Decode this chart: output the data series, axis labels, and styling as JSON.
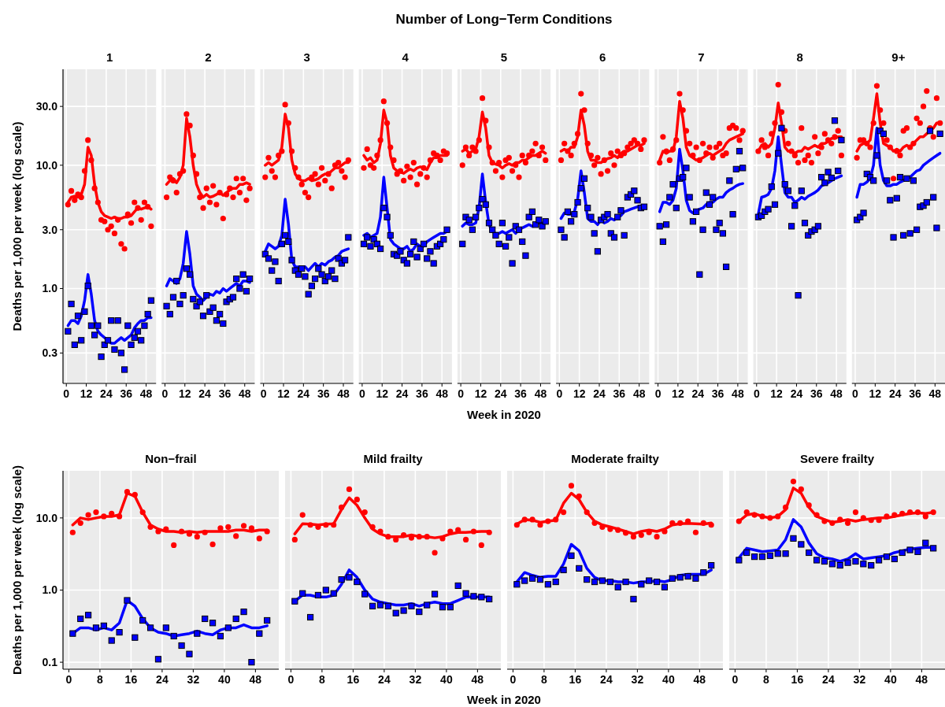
{
  "chart_data": [
    {
      "type": "scatter",
      "subtitle": "1",
      "ylabel": "Deaths per 1,000 per week (log scale)",
      "log": "y",
      "grid": true,
      "xlim": [
        -2,
        54
      ],
      "xticks": [
        0,
        12,
        24,
        36,
        48
      ],
      "ylim": [
        0.17,
        60
      ],
      "yticks": [
        {
          "value": 0.3,
          "label": "0.3"
        },
        {
          "value": 1,
          "label": "1.0"
        },
        {
          "value": 3,
          "label": "3.0"
        },
        {
          "value": 10,
          "label": "10.0"
        },
        {
          "value": 30,
          "label": "30.0"
        }
      ],
      "x": [
        1,
        3,
        5,
        7,
        9,
        11,
        13,
        15,
        17,
        19,
        21,
        23,
        25,
        27,
        29,
        31,
        33,
        35,
        37,
        39,
        41,
        43,
        45,
        47,
        49,
        51
      ],
      "series": [
        {
          "type": "scatter",
          "marker": "circle",
          "color": "#ff0000",
          "values": [
            4.8,
            6.2,
            5.2,
            5.8,
            5.5,
            9,
            16,
            11,
            6.5,
            5,
            3.6,
            3.5,
            3.0,
            3.2,
            2.8,
            3.6,
            2.3,
            2.1,
            4.0,
            3.4,
            5.0,
            4.5,
            3.6,
            5,
            4.6,
            3.2
          ]
        },
        {
          "type": "scatter",
          "marker": "square",
          "color": "#0000ff",
          "values": [
            0.45,
            0.75,
            0.35,
            0.6,
            0.38,
            0.65,
            1.05,
            0.5,
            0.42,
            0.5,
            0.28,
            0.35,
            0.38,
            0.55,
            0.32,
            0.55,
            0.3,
            0.22,
            0.5,
            0.35,
            0.4,
            0.45,
            0.38,
            0.5,
            0.62,
            0.8
          ]
        },
        {
          "type": "line",
          "color": "#ff0000",
          "values": [
            5.0,
            5.5,
            5.6,
            5.5,
            5.8,
            7,
            14,
            12,
            7,
            5,
            4.2,
            3.9,
            3.8,
            3.7,
            3.8,
            3.7,
            3.7,
            3.8,
            3.8,
            3.9,
            4.2,
            4.5,
            4.4,
            4.5,
            4.6,
            4.4
          ]
        },
        {
          "type": "line",
          "color": "#0000ff",
          "values": [
            0.5,
            0.55,
            0.55,
            0.52,
            0.6,
            0.8,
            1.3,
            0.9,
            0.55,
            0.45,
            0.42,
            0.4,
            0.38,
            0.36,
            0.36,
            0.38,
            0.4,
            0.38,
            0.4,
            0.42,
            0.48,
            0.52,
            0.55,
            0.55,
            0.58,
            0.58
          ]
        }
      ]
    },
    {
      "type": "scatter",
      "subtitle": "2",
      "tick_labels": "x",
      "log": "y",
      "grid": true,
      "xlim": [
        -2,
        54
      ],
      "xticks": [
        0,
        12,
        24,
        36,
        48
      ],
      "ylim": [
        0.17,
        60
      ],
      "yticks": [
        0.3,
        1,
        3,
        10,
        30
      ],
      "x": [
        1,
        3,
        5,
        7,
        9,
        11,
        13,
        15,
        17,
        19,
        21,
        23,
        25,
        27,
        29,
        31,
        33,
        35,
        37,
        39,
        41,
        43,
        45,
        47,
        49,
        51
      ],
      "series": [
        {
          "type": "scatter",
          "marker": "circle",
          "color": "#ff0000",
          "values": [
            5.5,
            8,
            7.5,
            6,
            8.5,
            9,
            26,
            21,
            12,
            8.5,
            5.5,
            4.5,
            6.5,
            5,
            6.8,
            4.8,
            6,
            3.7,
            5.8,
            6.5,
            5.5,
            7.8,
            6,
            7.8,
            5.2,
            6.5
          ]
        },
        {
          "type": "scatter",
          "marker": "square",
          "color": "#0000ff",
          "values": [
            0.72,
            0.62,
            0.85,
            1.15,
            0.75,
            0.88,
            1.45,
            1.3,
            0.82,
            0.72,
            0.78,
            0.6,
            0.88,
            0.65,
            0.7,
            0.55,
            0.62,
            0.52,
            0.78,
            0.82,
            0.85,
            1.2,
            1.0,
            1.3,
            0.95,
            1.2
          ]
        },
        {
          "type": "line",
          "color": "#ff0000",
          "values": [
            7,
            7.5,
            7.8,
            7.2,
            8,
            10,
            24,
            17,
            10,
            7,
            6,
            5.5,
            5.8,
            5.5,
            5.6,
            5.8,
            6,
            5.7,
            6,
            6.3,
            6.5,
            6.5,
            7,
            7,
            7.2,
            7
          ]
        },
        {
          "type": "line",
          "color": "#0000ff",
          "values": [
            1.05,
            1.2,
            1.15,
            1.1,
            1.2,
            1.6,
            2.9,
            1.9,
            1.05,
            0.9,
            0.85,
            0.8,
            0.85,
            0.9,
            0.88,
            0.95,
            0.92,
            1.0,
            0.95,
            1.0,
            1.05,
            1.1,
            1.05,
            1.15,
            1.15,
            1.12
          ]
        }
      ]
    },
    {
      "type": "scatter",
      "subtitle": "3",
      "tick_labels": "x",
      "log": "y",
      "grid": true,
      "xlim": [
        -2,
        54
      ],
      "xticks": [
        0,
        12,
        24,
        36,
        48
      ],
      "ylim": [
        0.17,
        60
      ],
      "yticks": [
        0.3,
        1,
        3,
        10,
        30
      ],
      "x": [
        1,
        3,
        5,
        7,
        9,
        11,
        13,
        15,
        17,
        19,
        21,
        23,
        25,
        27,
        29,
        31,
        33,
        35,
        37,
        39,
        41,
        43,
        45,
        47,
        49,
        51
      ],
      "series": [
        {
          "type": "scatter",
          "marker": "circle",
          "color": "#ff0000",
          "values": [
            8,
            11.5,
            9,
            8,
            12,
            13,
            31,
            22,
            13,
            9.5,
            8,
            7,
            6,
            5.5,
            8,
            8.5,
            7,
            9.5,
            7.5,
            8.5,
            6.5,
            10,
            10.5,
            9,
            8,
            11
          ]
        },
        {
          "type": "scatter",
          "marker": "square",
          "color": "#0000ff",
          "values": [
            1.9,
            1.75,
            1.4,
            1.65,
            1.15,
            2.3,
            2.7,
            2.4,
            1.7,
            1.4,
            1.3,
            1.45,
            1.25,
            0.9,
            1.05,
            1.2,
            1.45,
            1.3,
            1.15,
            1.25,
            1.4,
            1.2,
            1.75,
            1.6,
            1.7,
            2.6
          ]
        },
        {
          "type": "line",
          "color": "#ff0000",
          "values": [
            10,
            10.5,
            10,
            10.5,
            11,
            14,
            26,
            20,
            11,
            8.5,
            7.8,
            7.5,
            7.5,
            7.8,
            7.5,
            7.6,
            7.8,
            8.2,
            8.5,
            8.5,
            9,
            9.5,
            9.5,
            10,
            10.5,
            10.5
          ]
        },
        {
          "type": "line",
          "color": "#0000ff",
          "values": [
            2.0,
            2.3,
            2.2,
            2.1,
            2.2,
            2.7,
            5.3,
            3.3,
            1.7,
            1.5,
            1.5,
            1.45,
            1.5,
            1.4,
            1.5,
            1.6,
            1.5,
            1.6,
            1.55,
            1.65,
            1.7,
            1.8,
            1.85,
            2.0,
            2.05,
            2.1
          ]
        }
      ]
    },
    {
      "type": "scatter",
      "subtitle": "4",
      "tick_labels": "x",
      "log": "y",
      "grid": true,
      "xlim": [
        -2,
        54
      ],
      "xticks": [
        0,
        12,
        24,
        36,
        48
      ],
      "ylim": [
        0.17,
        60
      ],
      "yticks": [
        0.3,
        1,
        3,
        10,
        30
      ],
      "x": [
        1,
        3,
        5,
        7,
        9,
        11,
        13,
        15,
        17,
        19,
        21,
        23,
        25,
        27,
        29,
        31,
        33,
        35,
        37,
        39,
        41,
        43,
        45,
        47,
        49,
        51
      ],
      "series": [
        {
          "type": "scatter",
          "marker": "circle",
          "color": "#ff0000",
          "values": [
            9.5,
            13.5,
            10,
            9.5,
            12,
            16,
            33,
            22,
            14,
            11,
            8.5,
            9,
            7.5,
            9.8,
            8,
            10.5,
            7,
            8.5,
            9.5,
            8,
            11,
            12.5,
            12,
            11,
            13,
            12.5
          ]
        },
        {
          "type": "scatter",
          "marker": "square",
          "color": "#0000ff",
          "values": [
            2.3,
            2.6,
            2.2,
            2.5,
            2.3,
            2.1,
            4.5,
            3.8,
            2.7,
            1.9,
            1.85,
            2.0,
            1.7,
            1.6,
            1.9,
            2.4,
            1.8,
            2.1,
            2.3,
            1.75,
            2.0,
            1.6,
            2.2,
            2.3,
            2.5,
            3.0
          ]
        },
        {
          "type": "line",
          "color": "#ff0000",
          "values": [
            12,
            11,
            11.5,
            10.5,
            11,
            15,
            28,
            22,
            12,
            9.5,
            9,
            8.8,
            8.6,
            9,
            9.3,
            9,
            9.5,
            9.7,
            9.5,
            9.2,
            10.5,
            11.5,
            11.5,
            12,
            12,
            12
          ]
        },
        {
          "type": "line",
          "color": "#0000ff",
          "values": [
            2.7,
            2.8,
            2.6,
            2.7,
            2.8,
            3.8,
            8,
            4.5,
            2.5,
            2.3,
            2.2,
            2.1,
            2.1,
            2.2,
            2.0,
            2.1,
            2.3,
            2.2,
            2.2,
            2.4,
            2.5,
            2.6,
            2.7,
            2.8,
            2.8,
            2.9
          ]
        }
      ]
    },
    {
      "type": "scatter",
      "title": "Number of Long−Term Conditions",
      "subtitle": "5",
      "xlabel": "Week in 2020",
      "tick_labels": "x",
      "log": "y",
      "grid": true,
      "xlim": [
        -2,
        54
      ],
      "xticks": [
        0,
        12,
        24,
        36,
        48
      ],
      "ylim": [
        0.17,
        60
      ],
      "yticks": [
        0.3,
        1,
        3,
        10,
        30
      ],
      "x": [
        1,
        3,
        5,
        7,
        9,
        11,
        13,
        15,
        17,
        19,
        21,
        23,
        25,
        27,
        29,
        31,
        33,
        35,
        37,
        39,
        41,
        43,
        45,
        47,
        49,
        51
      ],
      "series": [
        {
          "type": "scatter",
          "marker": "circle",
          "color": "#ff0000",
          "values": [
            10,
            14,
            12,
            14,
            13,
            16,
            35,
            23,
            14,
            10.5,
            9,
            10.5,
            8,
            11,
            11.5,
            9,
            10,
            8,
            12,
            10.5,
            12,
            13,
            15,
            12,
            14,
            11
          ]
        },
        {
          "type": "scatter",
          "marker": "square",
          "color": "#0000ff",
          "values": [
            2.3,
            3.8,
            3.6,
            3.0,
            3.8,
            4.5,
            5.3,
            4.8,
            3.4,
            3.0,
            2.7,
            2.3,
            3.4,
            2.2,
            2.6,
            1.6,
            3.2,
            3.0,
            2.4,
            1.85,
            3.8,
            4.2,
            3.3,
            3.6,
            3.2,
            3.5
          ]
        },
        {
          "type": "line",
          "color": "#ff0000",
          "values": [
            13,
            13.5,
            12.5,
            13,
            13.5,
            17,
            27,
            20,
            12,
            10.5,
            10.2,
            10,
            9.5,
            10,
            10.3,
            10,
            10.5,
            10.5,
            11,
            11,
            11.5,
            12,
            12,
            12.5,
            13,
            12.5
          ]
        },
        {
          "type": "line",
          "color": "#0000ff",
          "values": [
            3.2,
            3.4,
            3.3,
            3.3,
            3.4,
            4.5,
            8.5,
            5,
            3.3,
            2.9,
            2.8,
            2.8,
            2.9,
            2.8,
            2.9,
            3.0,
            2.8,
            3.0,
            3.1,
            3.2,
            3.3,
            3.2,
            3.3,
            3.4,
            3.4,
            3.4
          ]
        }
      ]
    },
    {
      "type": "scatter",
      "subtitle": "6",
      "tick_labels": "x",
      "log": "y",
      "grid": true,
      "xlim": [
        -2,
        54
      ],
      "xticks": [
        0,
        12,
        24,
        36,
        48
      ],
      "ylim": [
        0.17,
        60
      ],
      "yticks": [
        0.3,
        1,
        3,
        10,
        30
      ],
      "x": [
        1,
        3,
        5,
        7,
        9,
        11,
        13,
        15,
        17,
        19,
        21,
        23,
        25,
        27,
        29,
        31,
        33,
        35,
        37,
        39,
        41,
        43,
        45,
        47,
        49,
        51
      ],
      "series": [
        {
          "type": "scatter",
          "marker": "circle",
          "color": "#ff0000",
          "values": [
            11,
            15,
            13,
            12,
            15,
            18,
            38,
            28,
            15,
            12,
            10,
            11.5,
            8.5,
            11,
            9,
            12.5,
            10,
            13,
            12,
            12.5,
            14,
            15,
            16,
            15,
            13.5,
            16
          ]
        },
        {
          "type": "scatter",
          "marker": "square",
          "color": "#0000ff",
          "values": [
            3.0,
            2.6,
            4.2,
            3.5,
            4.0,
            5.0,
            6.5,
            7.8,
            4.5,
            3.8,
            2.8,
            2.0,
            3.6,
            3.8,
            4.0,
            2.8,
            2.6,
            3.8,
            4.3,
            2.7,
            5.5,
            5.8,
            6.2,
            5.2,
            4.5,
            4.6
          ]
        },
        {
          "type": "line",
          "color": "#ff0000",
          "values": [
            13,
            13.5,
            13,
            14,
            14,
            17,
            28,
            21,
            13,
            11,
            11,
            10.5,
            10.5,
            11,
            11.3,
            11.5,
            12,
            11.5,
            12.5,
            13,
            13,
            13.5,
            14,
            14.5,
            14.5,
            15
          ]
        },
        {
          "type": "line",
          "color": "#0000ff",
          "values": [
            3.7,
            4.1,
            4.0,
            4.0,
            4.2,
            5.3,
            9.0,
            6,
            3.7,
            3.5,
            3.5,
            3.3,
            3.6,
            3.4,
            3.5,
            3.7,
            3.6,
            3.8,
            3.9,
            4.2,
            4.3,
            4.4,
            4.5,
            4.6,
            4.7,
            4.7
          ]
        }
      ]
    },
    {
      "type": "scatter",
      "subtitle": "7",
      "tick_labels": "x",
      "log": "y",
      "grid": true,
      "xlim": [
        -2,
        54
      ],
      "xticks": [
        0,
        12,
        24,
        36,
        48
      ],
      "ylim": [
        0.17,
        60
      ],
      "yticks": [
        0.3,
        1,
        3,
        10,
        30
      ],
      "x": [
        1,
        3,
        5,
        7,
        9,
        11,
        13,
        15,
        17,
        19,
        21,
        23,
        25,
        27,
        29,
        31,
        33,
        35,
        37,
        39,
        41,
        43,
        45,
        47,
        49,
        51
      ],
      "series": [
        {
          "type": "scatter",
          "marker": "circle",
          "color": "#ff0000",
          "values": [
            10.5,
            17,
            13,
            11,
            13.5,
            16,
            38,
            28,
            19,
            15,
            12,
            14,
            11,
            15,
            12.5,
            14,
            11.5,
            14,
            15,
            12,
            12.5,
            20,
            21,
            20,
            16,
            19
          ]
        },
        {
          "type": "scatter",
          "marker": "square",
          "color": "#0000ff",
          "values": [
            3.2,
            2.4,
            3.3,
            5.5,
            7,
            4.5,
            7.8,
            8.0,
            9.5,
            5.5,
            3.5,
            4.2,
            1.3,
            3.0,
            6.0,
            4.8,
            5.5,
            3.0,
            3.4,
            2.8,
            1.5,
            7.5,
            4.0,
            9.3,
            13,
            9.5
          ]
        },
        {
          "type": "line",
          "color": "#ff0000",
          "values": [
            11,
            13,
            12.5,
            13,
            13,
            17,
            33,
            24,
            14,
            12,
            11.5,
            11,
            11.2,
            11.5,
            12,
            12.5,
            12,
            12.5,
            13,
            13.5,
            15,
            16,
            16.5,
            17,
            17.5,
            18
          ]
        },
        {
          "type": "line",
          "color": "#0000ff",
          "values": [
            4.2,
            5.0,
            5.0,
            4.8,
            5.2,
            6.5,
            13.5,
            9,
            5.2,
            4.3,
            4.1,
            4.3,
            4.4,
            4.5,
            4.8,
            5.0,
            5.0,
            5.3,
            5.5,
            5.5,
            6,
            6.3,
            6.5,
            6.8,
            7,
            7.1
          ]
        }
      ]
    },
    {
      "type": "scatter",
      "subtitle": "8",
      "tick_labels": "x",
      "log": "y",
      "grid": true,
      "xlim": [
        -2,
        54
      ],
      "xticks": [
        0,
        12,
        24,
        36,
        48
      ],
      "ylim": [
        0.17,
        60
      ],
      "yticks": [
        0.3,
        1,
        3,
        10,
        30
      ],
      "x": [
        1,
        3,
        5,
        7,
        9,
        11,
        13,
        15,
        17,
        19,
        21,
        23,
        25,
        27,
        29,
        31,
        33,
        35,
        37,
        39,
        41,
        43,
        45,
        47,
        49,
        51
      ],
      "series": [
        {
          "type": "scatter",
          "marker": "circle",
          "color": "#ff0000",
          "values": [
            13,
            16,
            14,
            12,
            18,
            22,
            45,
            27,
            19,
            15,
            13,
            12,
            10.5,
            20,
            11,
            12,
            10.5,
            17,
            12.5,
            14,
            18,
            16,
            15,
            17,
            19,
            12
          ]
        },
        {
          "type": "scatter",
          "marker": "square",
          "color": "#0000ff",
          "values": [
            3.8,
            3.9,
            4.2,
            4.4,
            6.7,
            4.8,
            12.5,
            20,
            7,
            6.2,
            3.2,
            4.7,
            0.88,
            6.2,
            3.4,
            2.7,
            2.9,
            3.0,
            3.2,
            8.0,
            7.2,
            8.8,
            7.9,
            23,
            9,
            16
          ]
        },
        {
          "type": "line",
          "color": "#ff0000",
          "values": [
            13,
            14.5,
            15,
            14,
            15,
            20,
            32,
            22,
            14,
            13,
            13,
            12.5,
            13,
            13,
            14,
            13.5,
            14,
            14.5,
            14,
            15,
            15,
            15.5,
            16.5,
            16.5,
            17,
            17
          ]
        },
        {
          "type": "line",
          "color": "#0000ff",
          "values": [
            4.0,
            5.5,
            5.6,
            5.8,
            6.5,
            9,
            17,
            10,
            6,
            5.5,
            5.5,
            5.0,
            5.2,
            5.5,
            5.3,
            5.6,
            5.8,
            6.0,
            6.3,
            6.8,
            7,
            7.2,
            7.5,
            7.8,
            8.0,
            8.2
          ]
        }
      ]
    },
    {
      "type": "scatter",
      "subtitle": "9+",
      "tick_labels": "x",
      "log": "y",
      "grid": true,
      "xlim": [
        -2,
        54
      ],
      "xticks": [
        0,
        12,
        24,
        36,
        48
      ],
      "ylim": [
        0.17,
        60
      ],
      "yticks": [
        0.3,
        1,
        3,
        10,
        30
      ],
      "x": [
        1,
        3,
        5,
        7,
        9,
        11,
        13,
        15,
        17,
        19,
        21,
        23,
        25,
        27,
        29,
        31,
        33,
        35,
        37,
        39,
        41,
        43,
        45,
        47,
        49,
        51
      ],
      "series": [
        {
          "type": "scatter",
          "marker": "circle",
          "color": "#ff0000",
          "values": [
            11.5,
            16,
            16,
            15,
            14,
            22,
            44,
            28,
            22,
            16,
            14,
            7.8,
            13,
            12,
            19,
            20,
            14,
            15,
            24,
            22,
            30,
            40,
            20,
            17,
            35,
            22
          ]
        },
        {
          "type": "scatter",
          "marker": "square",
          "color": "#0000ff",
          "values": [
            3.6,
            3.8,
            4.1,
            8.5,
            8.0,
            7.5,
            12,
            19,
            18,
            7.5,
            5.2,
            2.6,
            5.4,
            8,
            2.7,
            7.8,
            2.8,
            7.5,
            3.0,
            4.6,
            4.7,
            5.0,
            19,
            5.5,
            3.1,
            18
          ]
        },
        {
          "type": "line",
          "color": "#ff0000",
          "values": [
            13,
            14.5,
            15,
            15,
            16,
            24,
            38,
            22,
            15,
            14.5,
            14,
            13,
            13.5,
            13,
            14,
            14.5,
            14,
            15,
            16,
            17,
            17,
            18,
            19,
            20,
            22,
            22
          ]
        },
        {
          "type": "line",
          "color": "#0000ff",
          "values": [
            5.5,
            7,
            7,
            7.3,
            7.8,
            10,
            20,
            10,
            7.5,
            6.8,
            6.8,
            7,
            7,
            7.3,
            7.5,
            7.8,
            8,
            8.5,
            9,
            9.2,
            10,
            10.5,
            11,
            11.5,
            12,
            12.5
          ]
        }
      ]
    },
    {
      "type": "scatter",
      "subtitle": "Non−frail",
      "ylabel": "Deaths per 1,000 per week (log scale)",
      "log": "y",
      "grid": true,
      "xlim": [
        -1.5,
        54
      ],
      "xticks": [
        0,
        8,
        16,
        24,
        32,
        40,
        48
      ],
      "ylim": [
        0.08,
        45
      ],
      "yticks": [
        {
          "value": 0.1,
          "label": "0.1"
        },
        {
          "value": 1,
          "label": "1.0"
        },
        {
          "value": 10,
          "label": "10.0"
        }
      ],
      "x": [
        1,
        3,
        5,
        7,
        9,
        11,
        13,
        15,
        17,
        19,
        21,
        23,
        25,
        27,
        29,
        31,
        33,
        35,
        37,
        39,
        41,
        43,
        45,
        47,
        49,
        51
      ],
      "series": [
        {
          "type": "scatter",
          "marker": "circle",
          "color": "#ff0000",
          "values": [
            6.3,
            8.5,
            11,
            12,
            10.5,
            11.5,
            10.5,
            23,
            21,
            12,
            7.5,
            6.5,
            7,
            4.2,
            6.5,
            6,
            5.5,
            6.3,
            4.3,
            7.2,
            7.5,
            5.6,
            7.8,
            7.2,
            5.2,
            6.5
          ]
        },
        {
          "type": "scatter",
          "marker": "square",
          "color": "#0000ff",
          "values": [
            0.25,
            0.4,
            0.45,
            0.3,
            0.32,
            0.2,
            0.26,
            0.72,
            0.22,
            0.38,
            0.3,
            0.11,
            0.3,
            0.23,
            0.17,
            0.13,
            0.25,
            0.4,
            0.35,
            0.23,
            0.3,
            0.4,
            0.5,
            0.1,
            0.25,
            0.38
          ]
        },
        {
          "type": "line",
          "color": "#ff0000",
          "values": [
            8,
            10,
            9.5,
            10,
            10.5,
            10.5,
            11,
            22,
            20,
            12,
            8,
            7,
            6.5,
            6.5,
            6.3,
            6.5,
            6.3,
            6.5,
            6.5,
            6.5,
            6.5,
            6.8,
            6.8,
            6.5,
            6.8,
            6.8
          ]
        },
        {
          "type": "line",
          "color": "#0000ff",
          "values": [
            0.25,
            0.3,
            0.3,
            0.28,
            0.3,
            0.28,
            0.35,
            0.72,
            0.6,
            0.4,
            0.3,
            0.26,
            0.25,
            0.23,
            0.24,
            0.25,
            0.27,
            0.25,
            0.24,
            0.28,
            0.3,
            0.3,
            0.33,
            0.3,
            0.3,
            0.32
          ]
        }
      ]
    },
    {
      "type": "scatter",
      "subtitle": "Mild frailty",
      "xlabel": "Week in 2020",
      "tick_labels": "x",
      "log": "y",
      "grid": true,
      "xlim": [
        -1.5,
        54
      ],
      "xticks": [
        0,
        8,
        16,
        24,
        32,
        40,
        48
      ],
      "ylim": [
        0.08,
        45
      ],
      "yticks": [
        0.1,
        1,
        10
      ],
      "x": [
        1,
        3,
        5,
        7,
        9,
        11,
        13,
        15,
        17,
        19,
        21,
        23,
        25,
        27,
        29,
        31,
        33,
        35,
        37,
        39,
        41,
        43,
        45,
        47,
        49,
        51
      ],
      "series": [
        {
          "type": "scatter",
          "marker": "circle",
          "color": "#ff0000",
          "values": [
            5,
            11,
            8,
            7.5,
            8,
            8,
            14,
            25,
            18,
            12,
            7.5,
            6.5,
            5.5,
            5,
            5.8,
            5.3,
            5.5,
            5.5,
            3.3,
            5.2,
            6.5,
            6.8,
            5,
            6.5,
            4.2,
            6.3
          ]
        },
        {
          "type": "scatter",
          "marker": "square",
          "color": "#0000ff",
          "values": [
            0.7,
            0.9,
            0.42,
            0.85,
            1.0,
            0.9,
            1.4,
            1.5,
            1.3,
            0.88,
            0.6,
            0.62,
            0.6,
            0.48,
            0.52,
            0.6,
            0.5,
            0.62,
            0.88,
            0.58,
            0.58,
            1.15,
            0.9,
            0.82,
            0.8,
            0.75
          ]
        },
        {
          "type": "line",
          "color": "#ff0000",
          "values": [
            6,
            8.3,
            8.2,
            8.0,
            8.2,
            8.3,
            13,
            19,
            15,
            10,
            7,
            6,
            5.5,
            5.5,
            5.5,
            5.8,
            5.5,
            5.5,
            5.3,
            5.5,
            6,
            6.3,
            6.3,
            6.4,
            6.5,
            6.5
          ]
        },
        {
          "type": "line",
          "color": "#0000ff",
          "values": [
            0.7,
            0.85,
            0.85,
            0.8,
            0.8,
            0.85,
            1.2,
            1.9,
            1.5,
            1.0,
            0.75,
            0.68,
            0.65,
            0.62,
            0.62,
            0.65,
            0.6,
            0.65,
            0.68,
            0.65,
            0.65,
            0.72,
            0.8,
            0.8,
            0.8,
            0.8
          ]
        }
      ]
    },
    {
      "type": "scatter",
      "subtitle": "Moderate frailty",
      "tick_labels": "x",
      "log": "y",
      "grid": true,
      "xlim": [
        -1.5,
        54
      ],
      "xticks": [
        0,
        8,
        16,
        24,
        32,
        40,
        48
      ],
      "ylim": [
        0.08,
        45
      ],
      "yticks": [
        0.1,
        1,
        10
      ],
      "x": [
        1,
        3,
        5,
        7,
        9,
        11,
        13,
        15,
        17,
        19,
        21,
        23,
        25,
        27,
        29,
        31,
        33,
        35,
        37,
        39,
        41,
        43,
        45,
        47,
        49,
        51
      ],
      "series": [
        {
          "type": "scatter",
          "marker": "circle",
          "color": "#ff0000",
          "values": [
            8,
            9.5,
            9.5,
            8,
            9,
            9.5,
            12,
            28,
            20,
            12,
            8.5,
            7.5,
            7,
            6.8,
            6.2,
            5.5,
            5.8,
            6.3,
            5.5,
            6.5,
            8.5,
            8.5,
            9,
            6.3,
            8.5,
            8
          ]
        },
        {
          "type": "scatter",
          "marker": "square",
          "color": "#0000ff",
          "values": [
            1.2,
            1.35,
            1.45,
            1.4,
            1.2,
            1.3,
            1.9,
            3.0,
            2.0,
            1.4,
            1.3,
            1.35,
            1.3,
            1.1,
            1.3,
            0.75,
            1.2,
            1.35,
            1.3,
            1.1,
            1.45,
            1.5,
            1.55,
            1.45,
            1.75,
            2.2
          ]
        },
        {
          "type": "line",
          "color": "#ff0000",
          "values": [
            8.2,
            9.5,
            9.3,
            8.7,
            9.0,
            9.3,
            16,
            22,
            18,
            12,
            9,
            8,
            7.5,
            7,
            6.5,
            6,
            6.5,
            6.8,
            6.5,
            7,
            8,
            8.3,
            8.4,
            8.3,
            8.2,
            8.5
          ]
        },
        {
          "type": "line",
          "color": "#0000ff",
          "values": [
            1.3,
            1.75,
            1.6,
            1.5,
            1.55,
            1.55,
            2.3,
            4.3,
            3.5,
            2,
            1.5,
            1.35,
            1.35,
            1.3,
            1.3,
            1.25,
            1.3,
            1.3,
            1.35,
            1.3,
            1.4,
            1.6,
            1.65,
            1.65,
            1.65,
            1.9
          ]
        }
      ]
    },
    {
      "type": "scatter",
      "subtitle": "Severe frailty",
      "tick_labels": "x",
      "log": "y",
      "grid": true,
      "xlim": [
        -1.5,
        54
      ],
      "xticks": [
        0,
        8,
        16,
        24,
        32,
        40,
        48
      ],
      "ylim": [
        0.08,
        45
      ],
      "yticks": [
        0.1,
        1,
        10
      ],
      "x": [
        1,
        3,
        5,
        7,
        9,
        11,
        13,
        15,
        17,
        19,
        21,
        23,
        25,
        27,
        29,
        31,
        33,
        35,
        37,
        39,
        41,
        43,
        45,
        47,
        49,
        51
      ],
      "series": [
        {
          "type": "scatter",
          "marker": "circle",
          "color": "#ff0000",
          "values": [
            9,
            12,
            11,
            10.5,
            10,
            10.5,
            14,
            32,
            25,
            15,
            11,
            9,
            8.5,
            9.5,
            8.5,
            12,
            10,
            9.3,
            9.3,
            10.5,
            11,
            11.5,
            12,
            12,
            10.5,
            12
          ]
        },
        {
          "type": "scatter",
          "marker": "square",
          "color": "#0000ff",
          "values": [
            2.6,
            3.3,
            2.9,
            2.9,
            3.0,
            3.2,
            3.2,
            5.2,
            4.3,
            3.3,
            2.6,
            2.5,
            2.3,
            2.2,
            2.4,
            2.5,
            2.3,
            2.2,
            2.6,
            2.9,
            2.7,
            3.3,
            3.6,
            3.4,
            4.5,
            3.8
          ]
        },
        {
          "type": "line",
          "color": "#ff0000",
          "values": [
            9,
            11,
            11.5,
            10.5,
            10,
            10.5,
            13,
            26,
            22,
            14,
            10.5,
            9.5,
            8.7,
            9,
            9.5,
            9,
            9.5,
            9.7,
            10,
            10,
            10.5,
            11,
            11.5,
            11.8,
            11.5,
            12
          ]
        },
        {
          "type": "line",
          "color": "#0000ff",
          "values": [
            2.8,
            3.8,
            3.6,
            3.4,
            3.5,
            3.6,
            5,
            9.5,
            7.5,
            4.5,
            3.2,
            2.8,
            2.7,
            2.5,
            2.7,
            3.2,
            2.7,
            2.8,
            2.9,
            3.0,
            3.3,
            3.5,
            3.7,
            3.8,
            3.9,
            3.9
          ]
        }
      ]
    }
  ]
}
